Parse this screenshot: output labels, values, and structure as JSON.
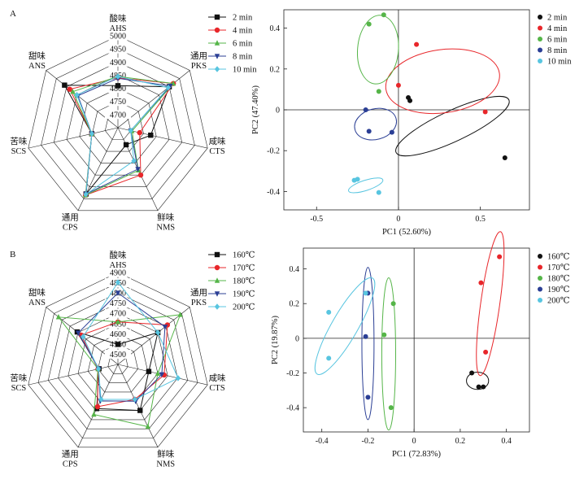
{
  "panel_labels": [
    "A",
    "B"
  ],
  "chart_data": [
    {
      "type": "radar",
      "panel": "A",
      "axes": [
        {
          "cn": "酸味",
          "en": "AHS"
        },
        {
          "cn": "通用",
          "en": "PKS"
        },
        {
          "cn": "咸味",
          "en": "CTS"
        },
        {
          "cn": "鲜味",
          "en": "NMS"
        },
        {
          "cn": "通用",
          "en": "CPS"
        },
        {
          "cn": "苦味",
          "en": "SCS"
        },
        {
          "cn": "甜味",
          "en": "ANS"
        }
      ],
      "rlim": [
        4650,
        5000
      ],
      "ticks": [
        "4700",
        "4750",
        "4800",
        "4850",
        "4900",
        "4950",
        "5000"
      ],
      "legend_position": "right",
      "series": [
        {
          "name": "2 min",
          "color": "#111111",
          "marker": "square",
          "values": [
            4810,
            4900,
            4778,
            4722,
            4930,
            4752,
            4910
          ]
        },
        {
          "name": "4 min",
          "color": "#e8262a",
          "marker": "circle",
          "values": [
            4840,
            4920,
            4735,
            4850,
            4935,
            4752,
            4885
          ]
        },
        {
          "name": "6 min",
          "color": "#55b548",
          "marker": "triangle",
          "values": [
            4845,
            4920,
            4705,
            4830,
            4935,
            4752,
            4870
          ]
        },
        {
          "name": "8 min",
          "color": "#2b3f95",
          "marker": "triangle-down",
          "values": [
            4838,
            4905,
            4700,
            4825,
            4930,
            4752,
            4845
          ]
        },
        {
          "name": "10 min",
          "color": "#58c5e0",
          "marker": "diamond",
          "values": [
            4845,
            4895,
            4700,
            4790,
            4932,
            4752,
            4850
          ]
        }
      ]
    },
    {
      "type": "scatter",
      "panel": "A",
      "xlabel": "PC1 (52.60%)",
      "ylabel": "PC2 (47.40%)",
      "xlim": [
        -0.7,
        0.8
      ],
      "ylim": [
        -0.49,
        0.49
      ],
      "xticks": [
        -0.5,
        0,
        0.5
      ],
      "yticks": [
        -0.4,
        -0.2,
        0,
        0.2,
        0.4
      ],
      "tick_labels_x": [
        "-0.5",
        "0",
        "0.5"
      ],
      "tick_labels_y": [
        "-0.4",
        "-0.2",
        "0",
        "0.2",
        "0.4"
      ],
      "legend_position": "right",
      "series": [
        {
          "name": "2 min",
          "color": "#111111",
          "points": [
            [
              0.06,
              0.06
            ],
            [
              0.07,
              0.045
            ],
            [
              0.65,
              -0.235
            ]
          ],
          "ellipse": {
            "cx": 0.33,
            "cy": -0.08,
            "rx": 0.38,
            "ry": 0.075,
            "angle": -25
          }
        },
        {
          "name": "4 min",
          "color": "#e8262a",
          "points": [
            [
              0.11,
              0.32
            ],
            [
              0.53,
              -0.01
            ],
            [
              0.0,
              0.12
            ]
          ],
          "ellipse": {
            "cx": 0.27,
            "cy": 0.14,
            "rx": 0.35,
            "ry": 0.155,
            "angle": -8
          }
        },
        {
          "name": "6 min",
          "color": "#55b548",
          "points": [
            [
              -0.18,
              0.42
            ],
            [
              -0.09,
              0.465
            ],
            [
              -0.12,
              0.09
            ]
          ],
          "ellipse": {
            "cx": -0.125,
            "cy": 0.295,
            "rx": 0.21,
            "ry": 0.1,
            "angle": -85
          }
        },
        {
          "name": "8 min",
          "color": "#2b3f95",
          "points": [
            [
              -0.2,
              0.0
            ],
            [
              -0.18,
              -0.105
            ],
            [
              -0.04,
              -0.11
            ]
          ],
          "ellipse": {
            "cx": -0.14,
            "cy": -0.07,
            "rx": 0.13,
            "ry": 0.075,
            "angle": -15
          }
        },
        {
          "name": "10 min",
          "color": "#58c5e0",
          "points": [
            [
              -0.27,
              -0.345
            ],
            [
              -0.25,
              -0.34
            ],
            [
              -0.12,
              -0.405
            ]
          ],
          "ellipse": {
            "cx": -0.2,
            "cy": -0.37,
            "rx": 0.11,
            "ry": 0.025,
            "angle": -18
          }
        }
      ]
    },
    {
      "type": "radar",
      "panel": "B",
      "axes": [
        {
          "cn": "酸味",
          "en": "AHS"
        },
        {
          "cn": "通用",
          "en": "PKS"
        },
        {
          "cn": "咸味",
          "en": "CTS"
        },
        {
          "cn": "鲜味",
          "en": "NMS"
        },
        {
          "cn": "通用",
          "en": "CPS"
        },
        {
          "cn": "苦味",
          "en": "SCS"
        },
        {
          "cn": "甜味",
          "en": "ANS"
        }
      ],
      "rlim": [
        4450,
        4900
      ],
      "ticks": [
        "4500",
        "4550",
        "4600",
        "4650",
        "4700",
        "4750",
        "4800",
        "4850",
        "4900"
      ],
      "legend_position": "right",
      "series": [
        {
          "name": "160℃",
          "color": "#111111",
          "marker": "square",
          "values": [
            4548,
            4700,
            4605,
            4700,
            4690,
            4545,
            4705
          ]
        },
        {
          "name": "170℃",
          "color": "#e8262a",
          "marker": "circle",
          "values": [
            4658,
            4760,
            4682,
            4640,
            4680,
            4550,
            4680
          ]
        },
        {
          "name": "180℃",
          "color": "#55b548",
          "marker": "triangle",
          "values": [
            4658,
            4840,
            4650,
            4788,
            4722,
            4550,
            4822
          ]
        },
        {
          "name": "190℃",
          "color": "#2b3f95",
          "marker": "triangle-down",
          "values": [
            4800,
            4745,
            4670,
            4650,
            4648,
            4547,
            4698
          ]
        },
        {
          "name": "200℃",
          "color": "#58c5e0",
          "marker": "diamond",
          "values": [
            4852,
            4700,
            4752,
            4640,
            4640,
            4548,
            4668
          ]
        }
      ]
    },
    {
      "type": "scatter",
      "panel": "B",
      "xlabel": "PC1 (72.83%)",
      "ylabel": "PC2 (19.87%)",
      "xlim": [
        -0.48,
        0.5
      ],
      "ylim": [
        -0.54,
        0.52
      ],
      "xticks": [
        -0.4,
        -0.2,
        0,
        0.2,
        0.4
      ],
      "yticks": [
        -0.4,
        -0.2,
        0,
        0.2,
        0.4
      ],
      "tick_labels_x": [
        "-0.4",
        "-0.2",
        "0",
        "0.2",
        "0.4"
      ],
      "tick_labels_y": [
        "-0.4",
        "-0.2",
        "0",
        "0.2",
        "0.4"
      ],
      "legend_position": "right",
      "series": [
        {
          "name": "160℃",
          "color": "#111111",
          "points": [
            [
              0.25,
              -0.2
            ],
            [
              0.28,
              -0.28
            ],
            [
              0.3,
              -0.28
            ]
          ],
          "ellipse": {
            "cx": 0.275,
            "cy": -0.245,
            "rx": 0.048,
            "ry": 0.05,
            "angle": 0
          }
        },
        {
          "name": "170℃",
          "color": "#e8262a",
          "points": [
            [
              0.37,
              0.47
            ],
            [
              0.29,
              0.32
            ],
            [
              0.31,
              -0.08
            ]
          ],
          "ellipse": {
            "cx": 0.33,
            "cy": 0.2,
            "rx": 0.315,
            "ry": 0.055,
            "angle": -82
          }
        },
        {
          "name": "180℃",
          "color": "#55b548",
          "points": [
            [
              -0.13,
              0.02
            ],
            [
              -0.09,
              0.2
            ],
            [
              -0.1,
              -0.4
            ]
          ],
          "ellipse": {
            "cx": -0.11,
            "cy": -0.09,
            "rx": 0.33,
            "ry": 0.04,
            "angle": -90
          }
        },
        {
          "name": "190℃",
          "color": "#2b3f95",
          "points": [
            [
              -0.2,
              0.26
            ],
            [
              -0.21,
              0.01
            ],
            [
              -0.2,
              -0.34
            ]
          ],
          "ellipse": {
            "cx": -0.2,
            "cy": -0.03,
            "rx": 0.33,
            "ry": 0.035,
            "angle": -90
          }
        },
        {
          "name": "200℃",
          "color": "#58c5e0",
          "points": [
            [
              -0.37,
              0.15
            ],
            [
              -0.37,
              -0.115
            ],
            [
              -0.21,
              0.26
            ]
          ],
          "ellipse": {
            "cx": -0.3,
            "cy": 0.07,
            "rx": 0.24,
            "ry": 0.075,
            "angle": -60
          }
        }
      ]
    }
  ]
}
